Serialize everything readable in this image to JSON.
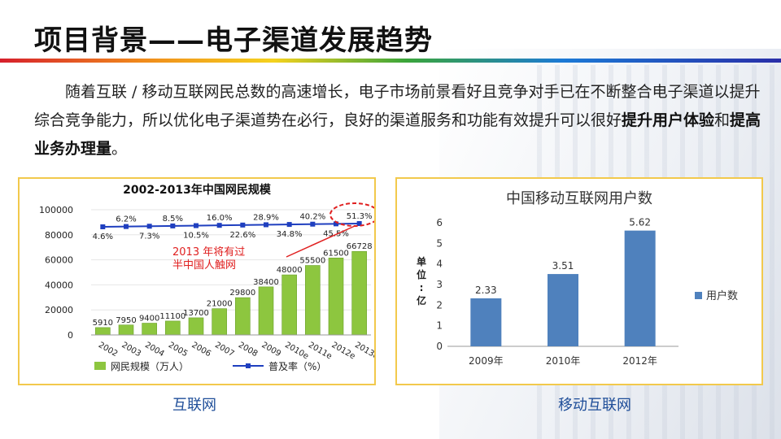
{
  "slide": {
    "title": "项目背景——电子渠道发展趋势",
    "intro_part1": "随着互联 / 移动互联网民总数的高速增长，电子市场前景看好且竞争对手已在不断整合电子渠道以提升综合竞争能力，所以优化电子渠道势在必行，良好的渠道服务和功能有效提升可以很好",
    "intro_bold1": "提升用户体验",
    "intro_mid": "和",
    "intro_bold2": "提高业务办理量",
    "intro_end": "。",
    "caption_left": "互联网",
    "caption_right": "移动互联网",
    "colors": {
      "bar_green": "#8dc63f",
      "line_blue": "#1f3fbf",
      "bar_blue": "#4f81bd",
      "callout_red": "#e02020",
      "panel_border": "#f2c94c"
    }
  },
  "chart_data": [
    {
      "type": "bar",
      "title": "2002-2013年中国网民规模",
      "categories": [
        "2002",
        "2003",
        "2004",
        "2005",
        "2006",
        "2007",
        "2008",
        "2009",
        "2010e",
        "2011e",
        "2012e",
        "2013e"
      ],
      "series": [
        {
          "name": "网民规模（万人）",
          "values": [
            5910,
            7950,
            9400,
            11100,
            13700,
            21000,
            29800,
            38400,
            48000,
            55500,
            61500,
            66728
          ],
          "labels": [
            "5910",
            "7950",
            "9400",
            "11100",
            "13700",
            "21000",
            "29800",
            "38400",
            "48000",
            "55500",
            "61500",
            "66728"
          ]
        },
        {
          "name": "普及率（%）",
          "type": "line",
          "labels": [
            "4.6%",
            "6.2%",
            "7.3%",
            "8.5%",
            "10.5%",
            "16.0%",
            "22.6%",
            "28.9%",
            "34.8%",
            "40.2%",
            "45.5%",
            "51.3%"
          ]
        }
      ],
      "y_ticks": [
        "0",
        "20000",
        "40000",
        "60000",
        "80000",
        "100000"
      ],
      "ylim": [
        0,
        100000
      ],
      "annotation": "2013 年将有过半中国人触网"
    },
    {
      "type": "bar",
      "title": "中国移动互联网用户数",
      "categories": [
        "2009年",
        "2010年",
        "2012年"
      ],
      "series": [
        {
          "name": "用户数",
          "values": [
            2.33,
            3.51,
            5.62
          ]
        }
      ],
      "value_labels": [
        "2.33",
        "3.51",
        "5.62"
      ],
      "ylabel": "单位:亿",
      "ylabel_chars": [
        "单",
        "位",
        ":",
        "亿"
      ],
      "y_ticks": [
        "0",
        "1",
        "2",
        "3",
        "4",
        "5",
        "6"
      ],
      "ylim": [
        0,
        6
      ],
      "legend": "right"
    }
  ]
}
